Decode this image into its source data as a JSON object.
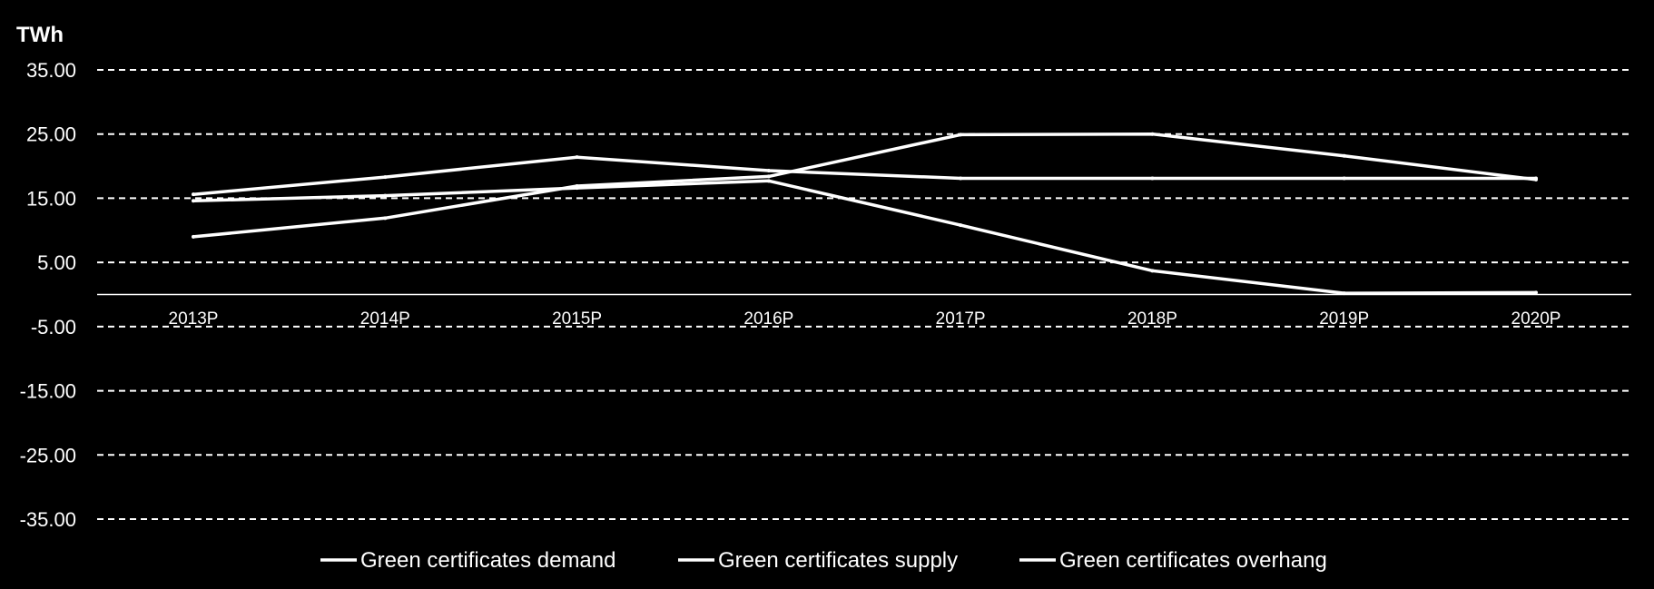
{
  "chart_data": {
    "type": "line",
    "unit_label": "TWh",
    "categories": [
      "2013P",
      "2014P",
      "2015P",
      "2016P",
      "2017P",
      "2018P",
      "2019P",
      "2020P"
    ],
    "y_ticks": [
      "35.00",
      "25.00",
      "15.00",
      "5.00",
      "-5.00",
      "-15.00",
      "-25.00",
      "-35.00"
    ],
    "ylim": [
      -35,
      35
    ],
    "grid": true,
    "legend_position": "bottom",
    "series": [
      {
        "name": "Green certificates demand",
        "values": [
          9.0,
          11.9,
          16.9,
          18.4,
          24.9,
          25.0,
          21.6,
          17.9
        ]
      },
      {
        "name": "Green certificates supply",
        "values": [
          15.6,
          18.3,
          21.4,
          19.3,
          18.1,
          18.1,
          18.1,
          18.1
        ]
      },
      {
        "name": "Green certificates overhang",
        "values": [
          14.6,
          15.4,
          16.6,
          17.7,
          10.8,
          3.7,
          0.2,
          0.3
        ]
      }
    ],
    "colors": {
      "background": "#000000",
      "line": "#ffffff"
    }
  }
}
